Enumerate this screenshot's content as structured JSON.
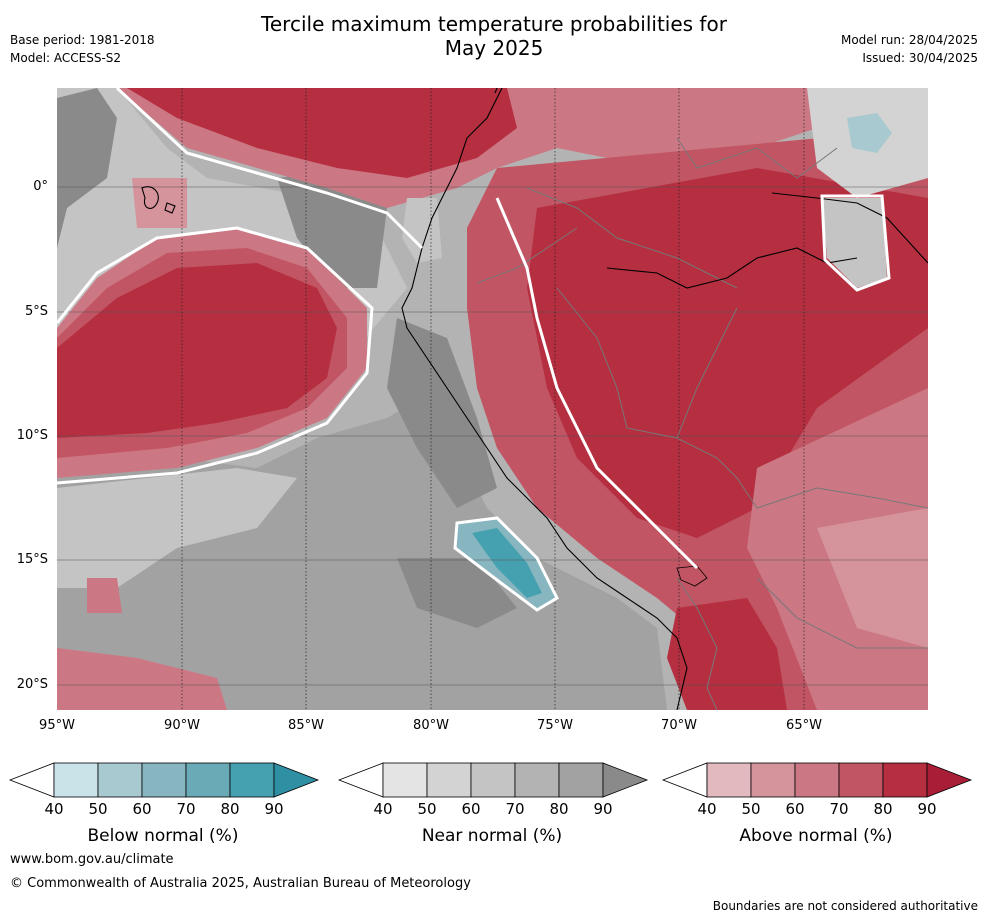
{
  "title_line1": "Tercile maximum temperature probabilities for",
  "title_line2": "May 2025",
  "base_period": "Base period: 1981-2018",
  "model": "Model: ACCESS-S2",
  "model_run": "Model run: 28/04/2025",
  "issued": "Issued: 30/04/2025",
  "lat_labels": [
    "0°",
    "5°S",
    "10°S",
    "15°S",
    "20°S"
  ],
  "lon_labels": [
    "95°W",
    "90°W",
    "85°W",
    "80°W",
    "75°W",
    "70°W",
    "65°W"
  ],
  "colorbars": [
    {
      "title": "Below normal (%)",
      "ticks": [
        "40",
        "50",
        "60",
        "70",
        "80",
        "90"
      ],
      "colors": [
        "#ffffff",
        "#c9e3e8",
        "#a7c9cf",
        "#88b6c0",
        "#6aa9b6",
        "#45a0af",
        "#2f8fa3"
      ]
    },
    {
      "title": "Near normal (%)",
      "ticks": [
        "40",
        "50",
        "60",
        "70",
        "80",
        "90"
      ],
      "colors": [
        "#ffffff",
        "#e4e4e4",
        "#d3d3d3",
        "#c4c4c4",
        "#b3b3b3",
        "#a2a2a2",
        "#8a8a8a"
      ]
    },
    {
      "title": "Above normal (%)",
      "ticks": [
        "40",
        "50",
        "60",
        "70",
        "80",
        "90"
      ],
      "colors": [
        "#ffffff",
        "#e2b9bf",
        "#d5939c",
        "#cc7884",
        "#c25563",
        "#b52f40",
        "#a81e37"
      ]
    }
  ],
  "website": "www.bom.gov.au/climate",
  "copyright": "© Commonwealth of Australia 2025, Australian Bureau of Meteorology",
  "disclaimer": "Boundaries are not considered authoritative"
}
